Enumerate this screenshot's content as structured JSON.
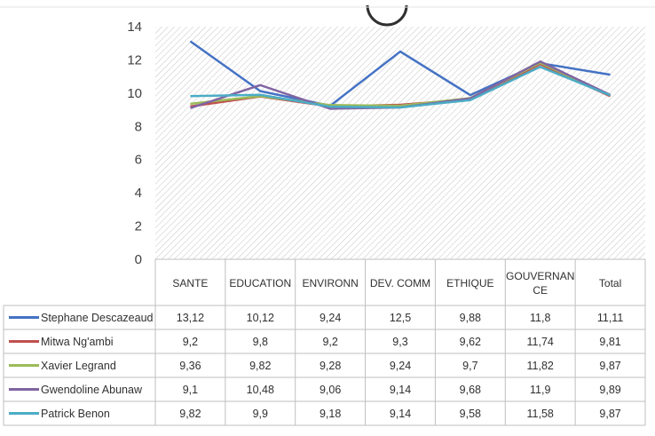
{
  "chart_data": {
    "type": "line",
    "categories": [
      "SANTE",
      "EDUCATION",
      "ENVIRONN",
      "DEV. COMM",
      "ETHIQUE",
      "GOUVERNAN CE",
      "Total"
    ],
    "category_lines": [
      [
        "SANTE"
      ],
      [
        "EDUCATION"
      ],
      [
        "ENVIRONN"
      ],
      [
        "DEV. COMM"
      ],
      [
        "ETHIQUE"
      ],
      [
        "GOUVERNAN",
        "CE"
      ],
      [
        "Total"
      ]
    ],
    "ylim": [
      0,
      14
    ],
    "yticks": [
      0,
      2,
      4,
      6,
      8,
      10,
      12,
      14
    ],
    "grid": false,
    "plot_fill": "hatched",
    "legend": "data-table",
    "series": [
      {
        "name": "Stephane Descazeaud",
        "color": "#4472C4",
        "values": [
          13.12,
          10.12,
          9.24,
          12.5,
          9.88,
          11.8,
          11.11
        ],
        "labels": [
          "13,12",
          "10,12",
          "9,24",
          "12,5",
          "9,88",
          "11,8",
          "11,11"
        ]
      },
      {
        "name": "Mitwa Ng'ambi",
        "color": "#C0504D",
        "values": [
          9.2,
          9.8,
          9.2,
          9.3,
          9.62,
          11.74,
          9.81
        ],
        "labels": [
          "9,2",
          "9,8",
          "9,2",
          "9,3",
          "9,62",
          "11,74",
          "9,81"
        ]
      },
      {
        "name": "Xavier  Legrand",
        "color": "#9BBB59",
        "values": [
          9.36,
          9.82,
          9.28,
          9.24,
          9.7,
          11.82,
          9.87
        ],
        "labels": [
          "9,36",
          "9,82",
          "9,28",
          "9,24",
          "9,7",
          "11,82",
          "9,87"
        ]
      },
      {
        "name": "Gwendoline Abunaw",
        "color": "#8064A2",
        "values": [
          9.1,
          10.48,
          9.06,
          9.14,
          9.68,
          11.9,
          9.89
        ],
        "labels": [
          "9,1",
          "10,48",
          "9,06",
          "9,14",
          "9,68",
          "11,9",
          "9,89"
        ]
      },
      {
        "name": "Patrick Benon",
        "color": "#4BACC6",
        "values": [
          9.82,
          9.9,
          9.18,
          9.14,
          9.58,
          11.58,
          9.87
        ],
        "labels": [
          "9,82",
          "9,9",
          "9,18",
          "9,14",
          "9,58",
          "11,58",
          "9,87"
        ]
      }
    ]
  }
}
